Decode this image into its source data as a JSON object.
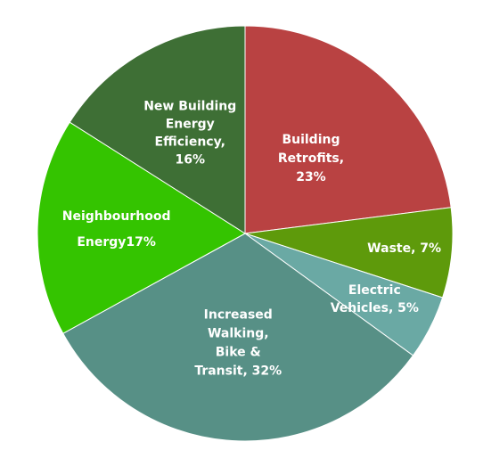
{
  "chart_data": {
    "type": "pie",
    "start_angle_deg": 0,
    "direction": "clockwise",
    "slices": [
      {
        "name": "Building Retrofits",
        "value": 23,
        "label_lines": [
          "Building",
          "Retrofits,",
          "23%"
        ],
        "color": "#b94242"
      },
      {
        "name": "Waste",
        "value": 7,
        "label_lines": [
          "Waste, 7%"
        ],
        "color": "#5e9a0b"
      },
      {
        "name": "Electric Vehicles",
        "value": 5,
        "label_lines": [
          "Electric",
          "Vehicles, 5%"
        ],
        "color": "#6aa9a4"
      },
      {
        "name": "Increased Walking, Bike & Transit",
        "value": 32,
        "label_lines": [
          "Increased",
          "Walking,",
          "Bike &",
          "Transit, 32%"
        ],
        "color": "#579086"
      },
      {
        "name": "Neighbourhood Energy",
        "value": 17,
        "label_lines": [
          "Neighbourhood",
          "Energy17%"
        ],
        "color": "#34c400"
      },
      {
        "name": "New Building Energy Efficiency",
        "value": 16,
        "label_lines": [
          "New Building",
          "Energy",
          "Efficiency,",
          "16%"
        ],
        "color": "#3e6f35"
      }
    ]
  }
}
